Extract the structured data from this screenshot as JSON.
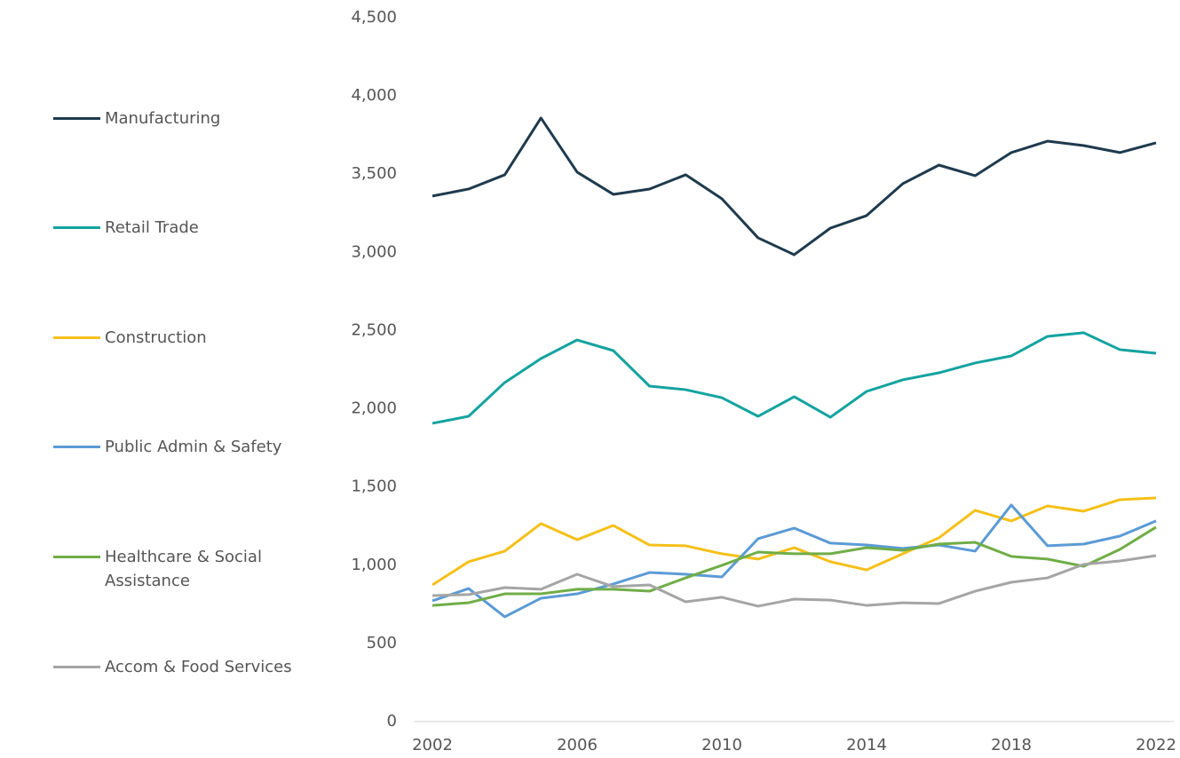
{
  "chart_data": {
    "type": "line",
    "x": [
      2002,
      2003,
      2004,
      2005,
      2006,
      2007,
      2008,
      2009,
      2010,
      2011,
      2012,
      2013,
      2014,
      2015,
      2016,
      2017,
      2018,
      2019,
      2020,
      2021,
      2022
    ],
    "xlim": [
      2002,
      2022
    ],
    "xticks": [
      2002,
      2006,
      2010,
      2014,
      2018,
      2022
    ],
    "ylim": [
      0,
      4500
    ],
    "yticks": [
      0,
      500,
      {
        "value": 1000,
        "label": "1,000"
      },
      {
        "value": 1500,
        "label": "1,500"
      },
      {
        "value": 2000,
        "label": "2,000"
      },
      {
        "value": 2500,
        "label": "2,500"
      },
      {
        "value": 3000,
        "label": "3,000"
      },
      {
        "value": 3500,
        "label": "3,500"
      },
      {
        "value": 4000,
        "label": "4,000"
      },
      {
        "value": 4500,
        "label": "4,500"
      }
    ],
    "grid": false,
    "legend": "left",
    "series": [
      {
        "name": "Manufacturing",
        "color": "#1f3a4d",
        "values": [
          3360,
          3405,
          3496,
          3859,
          3513,
          3371,
          3405,
          3496,
          3343,
          3093,
          2985,
          3155,
          3235,
          3439,
          3558,
          3490,
          3638,
          3711,
          3683,
          3638,
          3700
        ]
      },
      {
        "name": "Retail Trade",
        "color": "#13a3a0",
        "values": [
          1907,
          1952,
          2168,
          2321,
          2440,
          2372,
          2145,
          2122,
          2071,
          1952,
          2077,
          1946,
          2111,
          2185,
          2230,
          2293,
          2338,
          2463,
          2486,
          2378,
          2355
        ]
      },
      {
        "name": "Construction",
        "color": "#f5c018",
        "values": [
          874,
          1022,
          1090,
          1266,
          1163,
          1254,
          1129,
          1124,
          1073,
          1039,
          1112,
          1022,
          970,
          1073,
          1175,
          1351,
          1283,
          1379,
          1345,
          1419,
          1430
        ]
      },
      {
        "name": "Public Admin & Safety",
        "color": "#5b9bd5",
        "values": [
          772,
          851,
          670,
          789,
          817,
          880,
          953,
          942,
          925,
          1169,
          1237,
          1141,
          1129,
          1107,
          1129,
          1090,
          1385,
          1124,
          1135,
          1186,
          1283
        ]
      },
      {
        "name": "Healthcare & Social Assistance",
        "color": "#70ad47",
        "values": [
          743,
          760,
          817,
          817,
          846,
          846,
          834,
          919,
          999,
          1084,
          1073,
          1073,
          1112,
          1095,
          1135,
          1146,
          1056,
          1039,
          993,
          1101,
          1243
        ]
      },
      {
        "name": "Accom & Food Services",
        "color": "#a5a5a5",
        "values": [
          806,
          812,
          857,
          846,
          942,
          863,
          874,
          766,
          795,
          738,
          783,
          777,
          743,
          760,
          755,
          834,
          891,
          919,
          1005,
          1027,
          1061
        ]
      }
    ]
  }
}
